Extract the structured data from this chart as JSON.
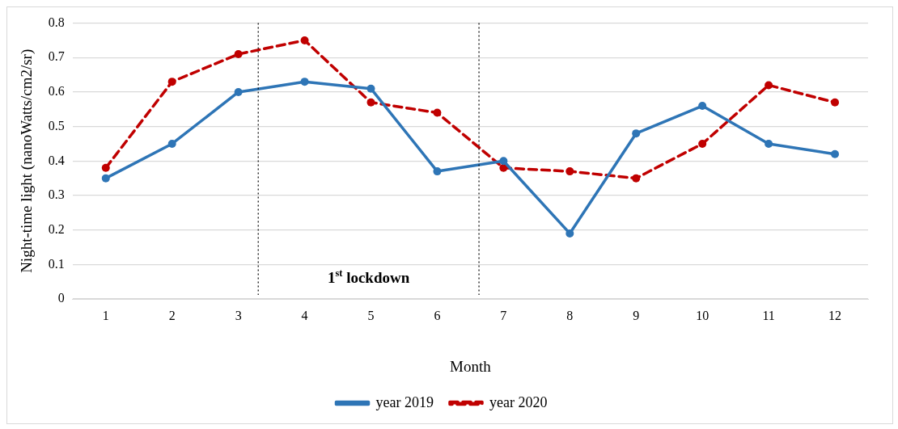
{
  "chart_data": {
    "type": "line",
    "xlabel": "Month",
    "ylabel": "Night-time light (nanoWatts/cm2/sr)",
    "x": [
      1,
      2,
      3,
      4,
      5,
      6,
      7,
      8,
      9,
      10,
      11,
      12
    ],
    "xlim": [
      0.5,
      12.5
    ],
    "xticks": [
      1,
      2,
      3,
      4,
      5,
      6,
      7,
      8,
      9,
      10,
      11,
      12
    ],
    "ylim": [
      0,
      0.8
    ],
    "yticks": [
      0,
      0.1,
      0.2,
      0.3,
      0.4,
      0.5,
      0.6,
      0.7,
      0.8
    ],
    "grid": "y",
    "legend": "bottom",
    "marker": "circle",
    "series": [
      {
        "name": "year 2019",
        "color": "#2e75b6",
        "line_style": "solid",
        "values": [
          0.35,
          0.45,
          0.6,
          0.63,
          0.61,
          0.37,
          0.4,
          0.19,
          0.48,
          0.56,
          0.45,
          0.42
        ]
      },
      {
        "name": "year 2020",
        "color": "#c00000",
        "line_style": "dashed",
        "values": [
          0.38,
          0.63,
          0.71,
          0.75,
          0.57,
          0.54,
          0.38,
          0.37,
          0.35,
          0.45,
          0.62,
          0.57
        ]
      }
    ],
    "ref_lines": [
      {
        "axis": "x",
        "value": 3.3,
        "color": "#000000",
        "line_style": "dotted"
      },
      {
        "axis": "x",
        "value": 6.63,
        "color": "#000000",
        "line_style": "dotted"
      }
    ],
    "annotations": [
      "1$^{st}$ lockdown"
    ]
  }
}
